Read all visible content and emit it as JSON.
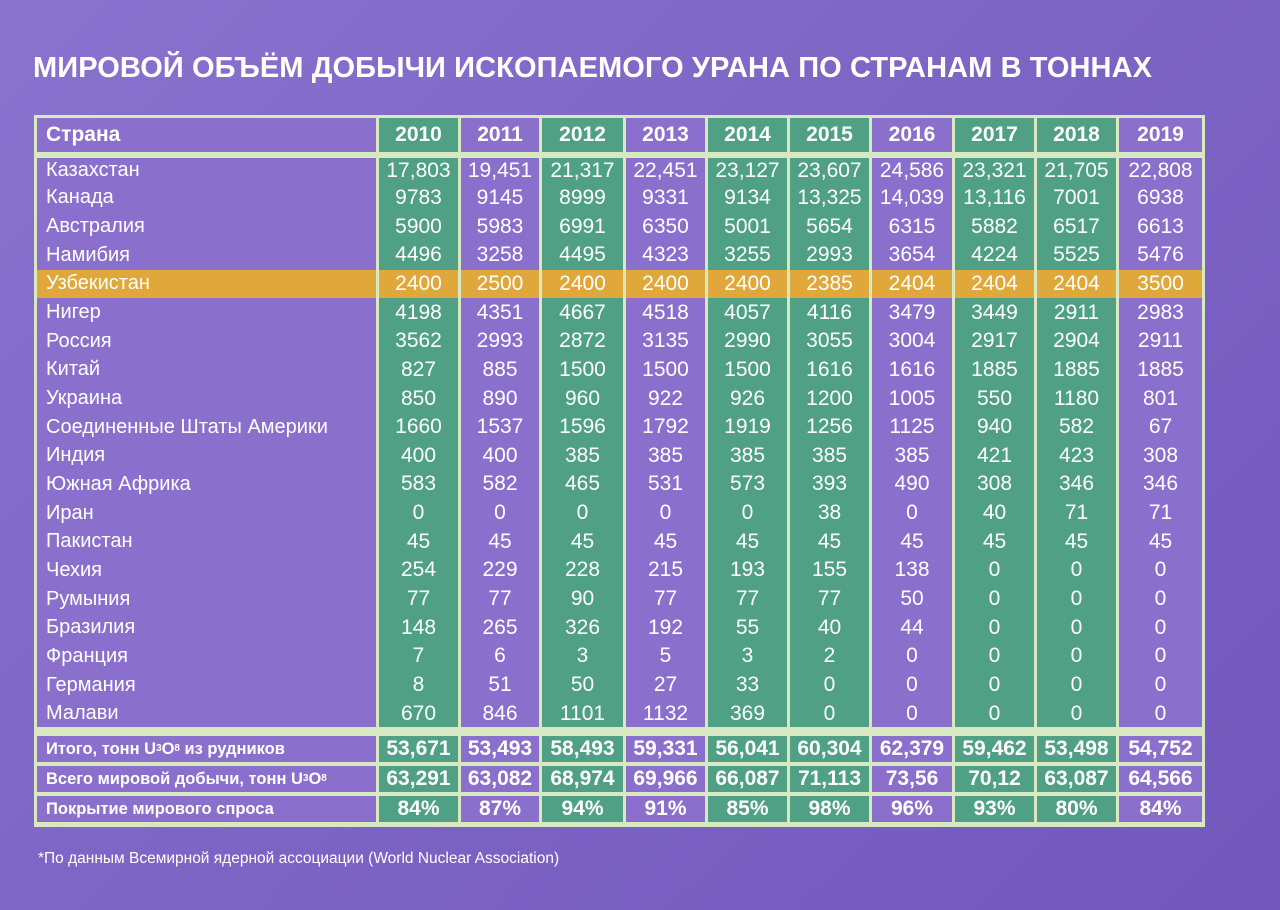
{
  "title": "МИРОВОЙ ОБЪЁМ ДОБЫЧИ ИСКОПАЕМОГО УРАНА ПО СТРАНАМ В ТОННАХ",
  "footnote": "*По данным Всемирной ядерной ассоциации (World Nuclear Association)",
  "colors": {
    "background": "#7c64c4",
    "purple_cell": "#8a70cc",
    "green_cell": "#4fa084",
    "highlight_cell": "#e0a83a",
    "grid_line": "#d8e8c0"
  },
  "chart_data": {
    "type": "table",
    "title": "МИРОВОЙ ОБЪЁМ ДОБЫЧИ ИСКОПАЕМОГО УРАНА ПО СТРАНАМ В ТОННАХ",
    "header_label": "Страна",
    "years": [
      "2010",
      "2011",
      "2012",
      "2013",
      "2014",
      "2015",
      "2016",
      "2017",
      "2018",
      "2019"
    ],
    "highlight_row": "Узбекистан",
    "rows": [
      {
        "country": "Казахстан",
        "values": [
          "17,803",
          "19,451",
          "21,317",
          "22,451",
          "23,127",
          "23,607",
          "24,586",
          "23,321",
          "21,705",
          "22,808"
        ]
      },
      {
        "country": "Канада",
        "values": [
          "9783",
          "9145",
          "8999",
          "9331",
          "9134",
          "13,325",
          "14,039",
          "13,116",
          "7001",
          "6938"
        ]
      },
      {
        "country": "Австралия",
        "values": [
          "5900",
          "5983",
          "6991",
          "6350",
          "5001",
          "5654",
          "6315",
          "5882",
          "6517",
          "6613"
        ]
      },
      {
        "country": "Намибия",
        "values": [
          "4496",
          "3258",
          "4495",
          "4323",
          "3255",
          "2993",
          "3654",
          "4224",
          "5525",
          "5476"
        ]
      },
      {
        "country": "Узбекистан",
        "values": [
          "2400",
          "2500",
          "2400",
          "2400",
          "2400",
          "2385",
          "2404",
          "2404",
          "2404",
          "3500"
        ]
      },
      {
        "country": "Нигер",
        "values": [
          "4198",
          "4351",
          "4667",
          "4518",
          "4057",
          "4116",
          "3479",
          "3449",
          "2911",
          "2983"
        ]
      },
      {
        "country": "Россия",
        "values": [
          "3562",
          "2993",
          "2872",
          "3135",
          "2990",
          "3055",
          "3004",
          "2917",
          "2904",
          "2911"
        ]
      },
      {
        "country": "Китай",
        "values": [
          "827",
          "885",
          "1500",
          "1500",
          "1500",
          "1616",
          "1616",
          "1885",
          "1885",
          "1885"
        ]
      },
      {
        "country": "Украина",
        "values": [
          "850",
          "890",
          "960",
          "922",
          "926",
          "1200",
          "1005",
          "550",
          "1180",
          "801"
        ]
      },
      {
        "country": "Соединенные Штаты Америки",
        "values": [
          "1660",
          "1537",
          "1596",
          "1792",
          "1919",
          "1256",
          "1125",
          "940",
          "582",
          "67"
        ]
      },
      {
        "country": "Индия",
        "values": [
          "400",
          "400",
          "385",
          "385",
          "385",
          "385",
          "385",
          "421",
          "423",
          "308"
        ]
      },
      {
        "country": "Южная Африка",
        "values": [
          "583",
          "582",
          "465",
          "531",
          "573",
          "393",
          "490",
          "308",
          "346",
          "346"
        ]
      },
      {
        "country": "Иран",
        "values": [
          "0",
          "0",
          "0",
          "0",
          "0",
          "38",
          "0",
          "40",
          "71",
          "71"
        ]
      },
      {
        "country": "Пакистан",
        "values": [
          "45",
          "45",
          "45",
          "45",
          "45",
          "45",
          "45",
          "45",
          "45",
          "45"
        ]
      },
      {
        "country": "Чехия",
        "values": [
          "254",
          "229",
          "228",
          "215",
          "193",
          "155",
          "138",
          "0",
          "0",
          "0"
        ]
      },
      {
        "country": "Румыния",
        "values": [
          "77",
          "77",
          "90",
          "77",
          "77",
          "77",
          "50",
          "0",
          "0",
          "0"
        ]
      },
      {
        "country": "Бразилия",
        "values": [
          "148",
          "265",
          "326",
          "192",
          "55",
          "40",
          "44",
          "0",
          "0",
          "0"
        ]
      },
      {
        "country": "Франция",
        "values": [
          "7",
          "6",
          "3",
          "5",
          "3",
          "2",
          "0",
          "0",
          "0",
          "0"
        ]
      },
      {
        "country": "Германия",
        "values": [
          "8",
          "51",
          "50",
          "27",
          "33",
          "0",
          "0",
          "0",
          "0",
          "0"
        ]
      },
      {
        "country": "Малави",
        "values": [
          "670",
          "846",
          "1101",
          "1132",
          "369",
          "0",
          "0",
          "0",
          "0",
          "0"
        ]
      }
    ],
    "totals": [
      {
        "label_prefix": "Итого, тонн U",
        "sub1": "3",
        "mid": "O",
        "sub2": "8",
        "label_suffix": " из рудников",
        "values": [
          "53,671",
          "53,493",
          "58,493",
          "59,331",
          "56,041",
          "60,304",
          "62,379",
          "59,462",
          "53,498",
          "54,752"
        ]
      },
      {
        "label_prefix": "Всего мировой добычи, тонн U",
        "sub1": "3",
        "mid": "O",
        "sub2": "8",
        "label_suffix": "",
        "values": [
          "63,291",
          "63,082",
          "68,974",
          "69,966",
          "66,087",
          "71,113",
          "73,56",
          "70,12",
          "63,087",
          "64,566"
        ]
      },
      {
        "label_prefix": "Покрытие мирового спроса",
        "sub1": "",
        "mid": "",
        "sub2": "",
        "label_suffix": "",
        "values": [
          "84%",
          "87%",
          "94%",
          "91%",
          "85%",
          "98%",
          "96%",
          "93%",
          "80%",
          "84%"
        ]
      }
    ]
  }
}
